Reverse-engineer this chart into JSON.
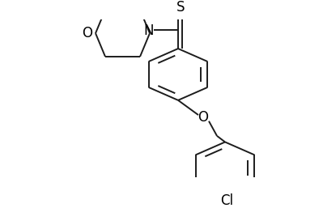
{
  "background_color": "#ffffff",
  "line_color": "#1c1c1c",
  "lw": 1.4,
  "figsize": [
    3.99,
    2.57
  ],
  "dpi": 100,
  "xlim": [
    0,
    399
  ],
  "ylim": [
    0,
    257
  ]
}
